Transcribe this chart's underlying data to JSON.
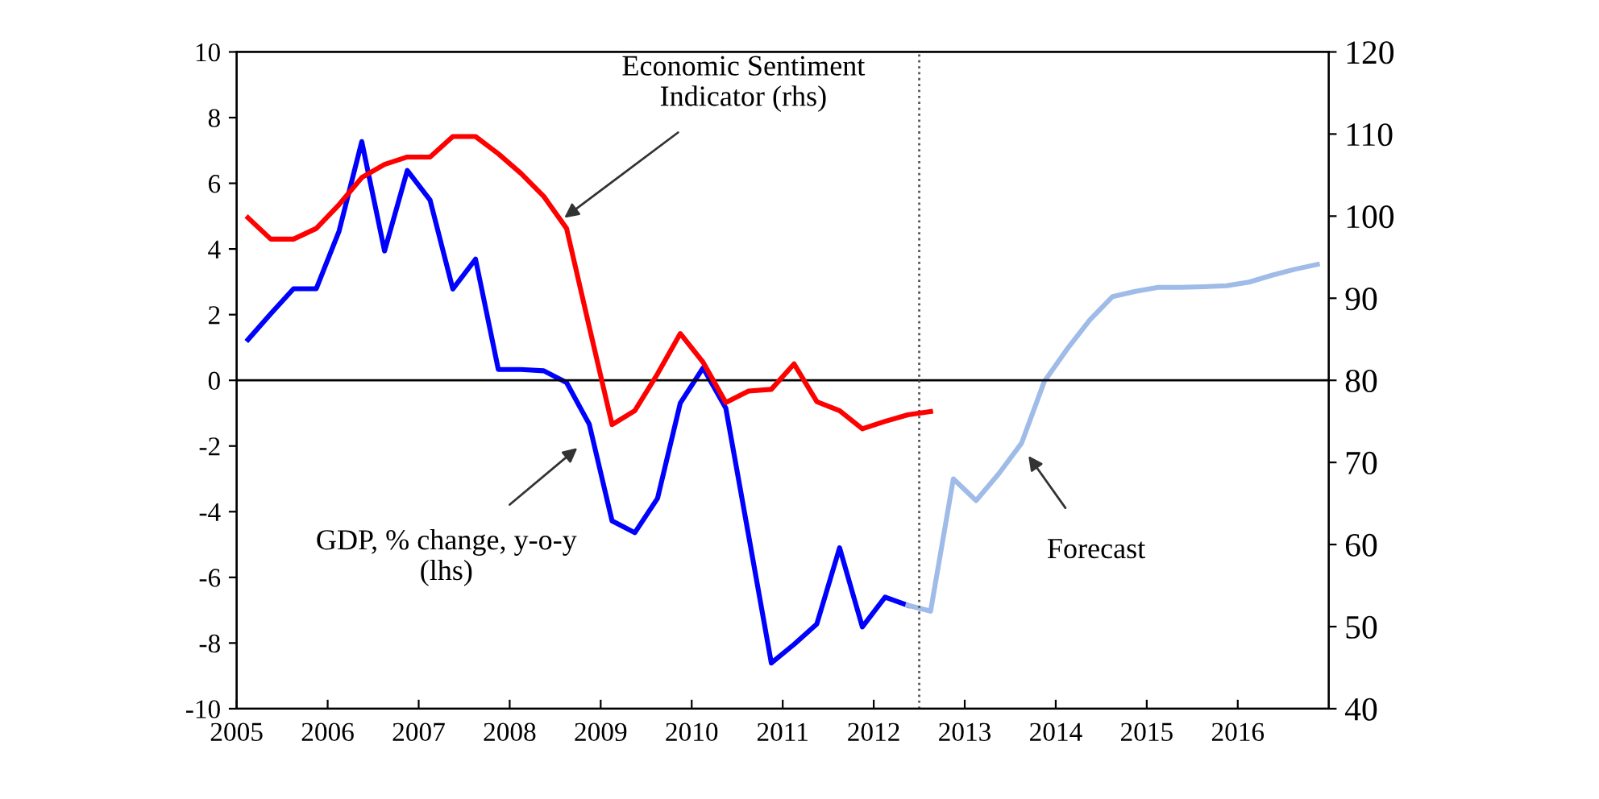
{
  "chart_data": {
    "type": "line",
    "xlim": [
      2005,
      2017
    ],
    "xticks": [
      2005,
      2006,
      2007,
      2008,
      2009,
      2010,
      2011,
      2012,
      2013,
      2014,
      2015,
      2016
    ],
    "ylim": [
      -10,
      10
    ],
    "yticks": [
      -10,
      -8,
      -6,
      -4,
      -2,
      0,
      2,
      4,
      6,
      8,
      10
    ],
    "y2lim": [
      40,
      120
    ],
    "y2ticks": [
      40,
      50,
      60,
      70,
      80,
      90,
      100,
      110,
      120
    ],
    "grid": false,
    "legend": false,
    "marker": "none",
    "line_style": "solid",
    "series": [
      {
        "color": "#0000ff",
        "x": [
          2005.125,
          2005.375,
          2005.625,
          2005.875,
          2006.125,
          2006.375,
          2006.625,
          2006.875,
          2007.125,
          2007.375,
          2007.625,
          2007.875,
          2008.125,
          2008.375,
          2008.625,
          2008.875,
          2009.125,
          2009.375,
          2009.625,
          2009.875,
          2010.125,
          2010.375,
          2010.625,
          2010.875,
          2011.125,
          2011.375,
          2011.625,
          2011.875,
          2012.125,
          2012.375
        ],
        "values": [
          1.24,
          2.03,
          2.79,
          2.79,
          4.54,
          7.27,
          3.94,
          6.39,
          5.49,
          2.78,
          3.69,
          0.33,
          0.33,
          0.29,
          -0.07,
          -1.34,
          -4.28,
          -4.64,
          -3.59,
          -0.69,
          0.38,
          -0.85,
          -4.72,
          -8.61,
          -8.04,
          -7.42,
          -5.1,
          -7.51,
          -6.6,
          -6.85
        ]
      },
      {
        "color": "#9fbbe8",
        "x": [
          2012.375,
          2012.625,
          2012.875,
          2013.125,
          2013.375,
          2013.625,
          2013.875,
          2014.125,
          2014.375,
          2014.625,
          2014.875,
          2015.125,
          2015.375,
          2015.625,
          2015.875,
          2016.125,
          2016.375,
          2016.625,
          2016.875
        ],
        "values": [
          -6.85,
          -7.03,
          -3.0,
          -3.66,
          -2.84,
          -1.91,
          -0.03,
          0.95,
          1.84,
          2.55,
          2.71,
          2.83,
          2.83,
          2.85,
          2.88,
          2.99,
          3.2,
          3.38,
          3.53
        ]
      },
      {
        "color": "#ff0000",
        "axis": "y2",
        "x": [
          2005.125,
          2005.375,
          2005.625,
          2005.875,
          2006.125,
          2006.375,
          2006.625,
          2006.875,
          2007.125,
          2007.375,
          2007.625,
          2007.875,
          2008.125,
          2008.375,
          2008.625,
          2008.875,
          2009.125,
          2009.375,
          2009.625,
          2009.875,
          2010.125,
          2010.375,
          2010.625,
          2010.875,
          2011.125,
          2011.375,
          2011.625,
          2011.875,
          2012.125,
          2012.375,
          2012.625
        ],
        "values": [
          99.8,
          97.2,
          97.2,
          98.5,
          101.4,
          104.7,
          106.3,
          107.2,
          107.2,
          109.7,
          109.7,
          107.6,
          105.2,
          102.4,
          98.5,
          86.5,
          74.6,
          76.3,
          80.8,
          85.7,
          82.2,
          77.3,
          78.7,
          78.9,
          82.0,
          77.4,
          76.3,
          74.1,
          75.0,
          75.8,
          76.2
        ]
      }
    ],
    "ref_lines": [
      {
        "axis": "y",
        "value": 0,
        "color": "#000000",
        "line_style": "solid"
      },
      {
        "axis": "x",
        "value": 2012.5,
        "color": "#555555",
        "line_style": "dotted"
      }
    ],
    "annotations": [
      {
        "text": "Economic Sentiment\nIndicator (rhs)",
        "x": 2008.6,
        "y": 4.95
      },
      "GDP, % change, y-o-y\n(lhs)",
      "Forecast"
    ]
  }
}
